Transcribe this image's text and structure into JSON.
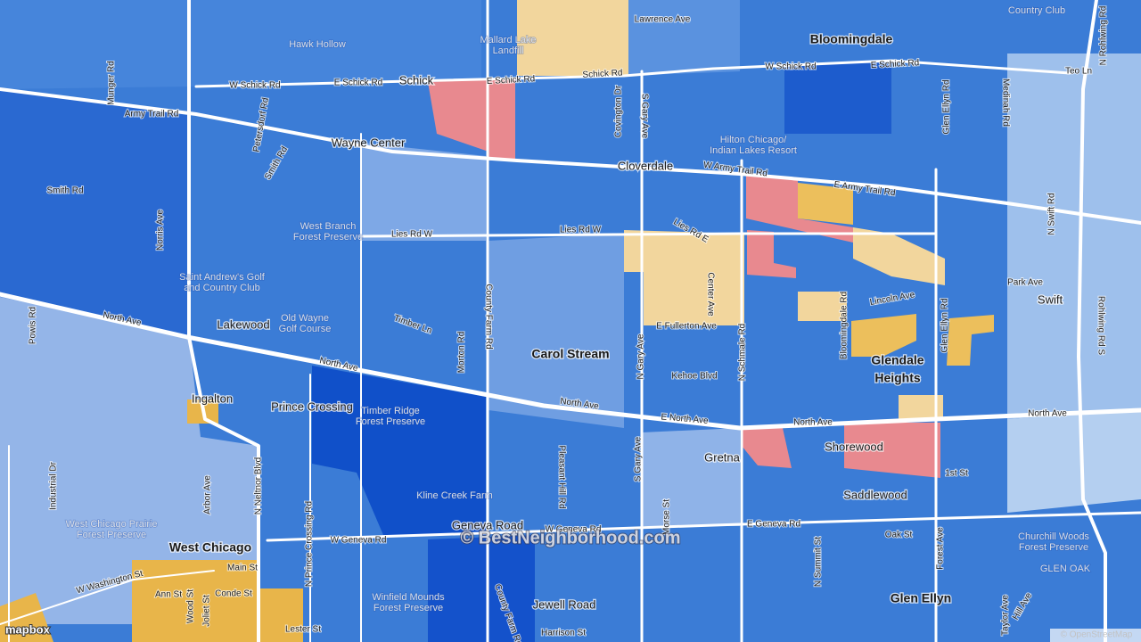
{
  "places": [
    "Bloomingdale",
    "Schick",
    "Wayne Center",
    "Cloverdale",
    "Carol Stream",
    "Lakewood",
    "Ingalton",
    "Prince Crossing",
    [
      "Glendale",
      "Heights"
    ],
    "Swift",
    "Shorewood",
    "Saddlewood",
    "Gretna",
    "West Chicago",
    "Glen Ellyn",
    "Geneva Road",
    "Jewell Road",
    "GLEN OAK"
  ],
  "pois": [
    [
      "Hawk Hollow"
    ],
    [
      "Mallard Lake",
      "Landfill"
    ],
    [
      "Hilton Chicago/",
      "Indian Lakes Resort"
    ],
    [
      "West Branch",
      "Forest Preserve"
    ],
    [
      "Saint Andrew's Golf",
      "and Country Club"
    ],
    [
      "Old Wayne",
      "Golf Course"
    ],
    [
      "Timber Ridge",
      "Forest Preserve"
    ],
    [
      "Kline Creek Farm"
    ],
    [
      "West Chicago Prairie",
      "Forest Preserve"
    ],
    [
      "Winfield Mounds",
      "Forest Preserve"
    ],
    [
      "Churchill Woods",
      "Forest Preserve"
    ],
    [
      "Country Club"
    ]
  ],
  "roads": [
    "Lawrence Ave",
    "Schick Rd",
    "E Schick Rd",
    "E Schick Rd",
    "W Schick Rd",
    "W Schick Rd",
    "E Schick Rd",
    "Army Trail Rd",
    "Munger Rd",
    "Smith Rd",
    "Smith Rd",
    "Petersdorf Rd",
    "Lies Rd W",
    "Lies Rd W",
    "Lies Rd E",
    "W Army Trail Rd",
    "E Army Trail Rd",
    "North Ave",
    "North Ave",
    "North Ave",
    "E North Ave",
    "North Ave",
    "North Ave",
    "Norris Ave",
    "County Farm Rd",
    "Morton Rd",
    "Timber Ln",
    "Covington Dr",
    "S Gary Ave",
    "N Gary Ave",
    "S Gary Ave",
    "Center Ave",
    "E Fullerton Ave",
    "Kehoe Blvd",
    "N Schmale Rd",
    "Bloomingdale Rd",
    "Lincoln Ave",
    "Glen Ellyn Rd",
    "Glen Ellyn Rd",
    "Medinah Rd",
    "Park Ave",
    "N Swift Rd",
    "N Rohlwing Rd",
    "Rohlwing Rd S",
    "Teo Ln",
    "Powis Rd",
    "Industrial Dr",
    "Arbor Ave",
    "N Prince Crossing Rd",
    "N Neltnor Blvd",
    "W Geneva Rd",
    "W Geneva Rd",
    "E Geneva Rd",
    "Oak St",
    "1st St",
    "Forest Ave",
    "Pleasant Hill Rd",
    "W Washington St",
    "Main St",
    "Ann St",
    "Wood St",
    "Joliet St",
    "Conde St",
    "Lester St",
    "Harrison St",
    "Hill Ave",
    "Taylor Ave",
    "N Summit St",
    "Morse St",
    "County Farm Rd"
  ],
  "watermark": "© BestNeighborhood.com",
  "attribution": {
    "logo": "mapbox",
    "osm": "© OpenStreetMap"
  }
}
